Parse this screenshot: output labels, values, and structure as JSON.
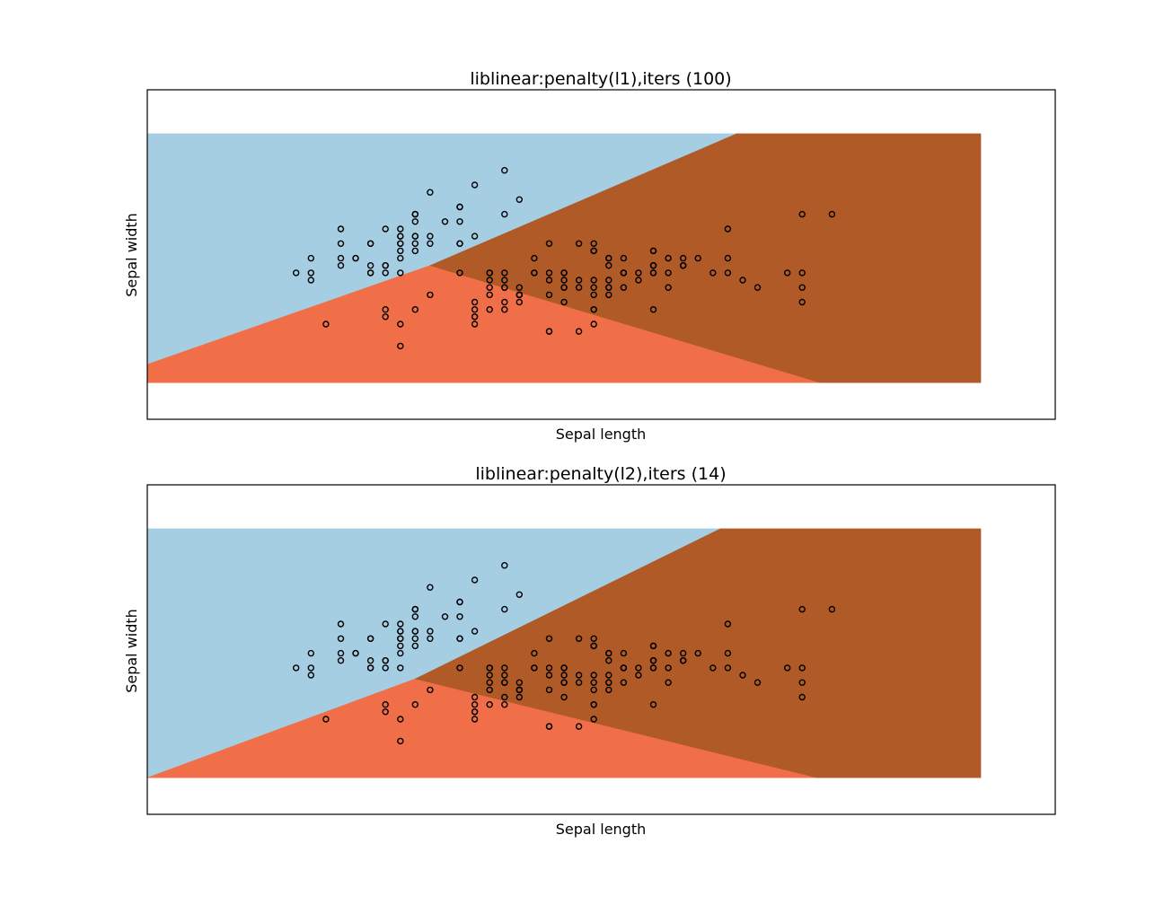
{
  "colors": {
    "class_0": "#a6cee3",
    "class_1": "#f06f48",
    "class_2": "#b05a28",
    "point_edge": "#000000",
    "point_fill": "none"
  },
  "chart_data": [
    {
      "type": "scatter",
      "title": "liblinear:penalty(l1),iters (100)",
      "xlabel": "Sepal length",
      "ylabel": "Sepal width",
      "xticks": [],
      "yticks": [],
      "xlim": [
        3.3,
        9.4
      ],
      "ylim": [
        1.0,
        5.5
      ],
      "mesh_extent": {
        "x": [
          3.3,
          8.9
        ],
        "y": [
          1.5,
          4.9
        ]
      },
      "decision_regions": [
        {
          "class": 0,
          "label": "upper-left region",
          "color_key": "class_0"
        },
        {
          "class": 1,
          "label": "lower-middle region",
          "color_key": "class_1"
        },
        {
          "class": 2,
          "label": "right region",
          "color_key": "class_2"
        }
      ],
      "boundaries": {
        "b01": [
          [
            3.3,
            1.75
          ],
          [
            5.2,
            3.1
          ]
        ],
        "b02": [
          [
            5.2,
            3.1
          ],
          [
            7.26,
            4.9
          ]
        ],
        "b12": [
          [
            5.2,
            3.1
          ],
          [
            7.82,
            1.5
          ]
        ]
      },
      "points": [
        [
          5.1,
          3.5
        ],
        [
          4.9,
          3.0
        ],
        [
          4.7,
          3.2
        ],
        [
          4.6,
          3.1
        ],
        [
          5.0,
          3.6
        ],
        [
          5.4,
          3.9
        ],
        [
          4.6,
          3.4
        ],
        [
          5.0,
          3.4
        ],
        [
          4.4,
          2.9
        ],
        [
          4.9,
          3.1
        ],
        [
          5.4,
          3.7
        ],
        [
          4.8,
          3.4
        ],
        [
          4.8,
          3.0
        ],
        [
          4.3,
          3.0
        ],
        [
          5.8,
          4.0
        ],
        [
          5.7,
          4.4
        ],
        [
          5.4,
          3.9
        ],
        [
          5.1,
          3.5
        ],
        [
          5.7,
          3.8
        ],
        [
          5.1,
          3.8
        ],
        [
          5.4,
          3.4
        ],
        [
          5.1,
          3.7
        ],
        [
          4.6,
          3.6
        ],
        [
          5.1,
          3.3
        ],
        [
          4.8,
          3.4
        ],
        [
          5.0,
          3.0
        ],
        [
          5.0,
          3.4
        ],
        [
          5.2,
          3.5
        ],
        [
          5.2,
          3.4
        ],
        [
          4.7,
          3.2
        ],
        [
          4.8,
          3.1
        ],
        [
          5.4,
          3.4
        ],
        [
          5.2,
          4.1
        ],
        [
          5.5,
          4.2
        ],
        [
          4.9,
          3.1
        ],
        [
          5.0,
          3.2
        ],
        [
          5.5,
          3.5
        ],
        [
          4.9,
          3.6
        ],
        [
          4.4,
          3.0
        ],
        [
          5.1,
          3.4
        ],
        [
          5.0,
          3.5
        ],
        [
          4.5,
          2.3
        ],
        [
          4.4,
          3.2
        ],
        [
          5.0,
          3.5
        ],
        [
          5.1,
          3.8
        ],
        [
          4.8,
          3.0
        ],
        [
          5.1,
          3.8
        ],
        [
          4.6,
          3.2
        ],
        [
          5.3,
          3.7
        ],
        [
          5.0,
          3.3
        ],
        [
          7.0,
          3.2
        ],
        [
          6.4,
          3.2
        ],
        [
          6.9,
          3.1
        ],
        [
          5.5,
          2.3
        ],
        [
          6.5,
          2.8
        ],
        [
          5.7,
          2.8
        ],
        [
          6.3,
          3.3
        ],
        [
          4.9,
          2.4
        ],
        [
          6.6,
          2.9
        ],
        [
          5.2,
          2.7
        ],
        [
          5.0,
          2.0
        ],
        [
          5.9,
          3.0
        ],
        [
          6.0,
          2.2
        ],
        [
          6.1,
          2.9
        ],
        [
          5.6,
          2.9
        ],
        [
          6.7,
          3.1
        ],
        [
          5.6,
          3.0
        ],
        [
          5.8,
          2.7
        ],
        [
          6.2,
          2.2
        ],
        [
          5.6,
          2.5
        ],
        [
          5.9,
          3.2
        ],
        [
          6.1,
          2.8
        ],
        [
          6.3,
          2.5
        ],
        [
          6.1,
          2.8
        ],
        [
          6.4,
          2.9
        ],
        [
          6.6,
          3.0
        ],
        [
          6.8,
          2.8
        ],
        [
          6.7,
          3.0
        ],
        [
          6.0,
          2.9
        ],
        [
          5.7,
          2.6
        ],
        [
          5.5,
          2.4
        ],
        [
          5.5,
          2.4
        ],
        [
          5.8,
          2.7
        ],
        [
          6.0,
          2.7
        ],
        [
          5.4,
          3.0
        ],
        [
          6.0,
          3.4
        ],
        [
          6.7,
          3.1
        ],
        [
          6.3,
          2.3
        ],
        [
          5.6,
          3.0
        ],
        [
          5.5,
          2.5
        ],
        [
          5.5,
          2.6
        ],
        [
          6.1,
          3.0
        ],
        [
          5.8,
          2.6
        ],
        [
          5.0,
          2.3
        ],
        [
          5.6,
          2.7
        ],
        [
          5.7,
          3.0
        ],
        [
          5.7,
          2.9
        ],
        [
          6.2,
          2.9
        ],
        [
          5.1,
          2.5
        ],
        [
          5.7,
          2.8
        ],
        [
          6.3,
          3.3
        ],
        [
          5.8,
          2.7
        ],
        [
          7.1,
          3.0
        ],
        [
          6.3,
          2.9
        ],
        [
          6.5,
          3.0
        ],
        [
          7.6,
          3.0
        ],
        [
          4.9,
          2.5
        ],
        [
          7.3,
          2.9
        ],
        [
          6.7,
          2.5
        ],
        [
          7.2,
          3.6
        ],
        [
          6.5,
          3.2
        ],
        [
          6.4,
          2.7
        ],
        [
          6.8,
          3.0
        ],
        [
          5.7,
          2.5
        ],
        [
          5.8,
          2.8
        ],
        [
          6.4,
          3.2
        ],
        [
          6.5,
          3.0
        ],
        [
          7.7,
          3.8
        ],
        [
          7.7,
          2.6
        ],
        [
          6.0,
          2.2
        ],
        [
          6.9,
          3.2
        ],
        [
          5.6,
          2.8
        ],
        [
          7.7,
          2.8
        ],
        [
          6.3,
          2.7
        ],
        [
          6.7,
          3.3
        ],
        [
          7.2,
          3.2
        ],
        [
          6.2,
          2.8
        ],
        [
          6.1,
          3.0
        ],
        [
          6.4,
          2.8
        ],
        [
          7.2,
          3.0
        ],
        [
          7.4,
          2.8
        ],
        [
          7.9,
          3.8
        ],
        [
          6.4,
          2.8
        ],
        [
          6.3,
          2.8
        ],
        [
          6.1,
          2.6
        ],
        [
          7.7,
          3.0
        ],
        [
          6.3,
          3.4
        ],
        [
          6.4,
          3.1
        ],
        [
          6.0,
          3.0
        ],
        [
          6.9,
          3.1
        ],
        [
          6.7,
          3.1
        ],
        [
          6.9,
          3.1
        ],
        [
          5.8,
          2.7
        ],
        [
          6.8,
          3.2
        ],
        [
          6.7,
          3.3
        ],
        [
          6.7,
          3.0
        ],
        [
          6.3,
          2.5
        ],
        [
          6.5,
          3.0
        ],
        [
          6.2,
          3.4
        ],
        [
          5.9,
          3.0
        ]
      ]
    },
    {
      "type": "scatter",
      "title": "liblinear:penalty(l2),iters (14)",
      "xlabel": "Sepal length",
      "ylabel": "Sepal width",
      "xticks": [],
      "yticks": [],
      "xlim": [
        3.3,
        9.4
      ],
      "ylim": [
        1.0,
        5.5
      ],
      "mesh_extent": {
        "x": [
          3.3,
          8.9
        ],
        "y": [
          1.5,
          4.9
        ]
      },
      "decision_regions": [
        {
          "class": 0,
          "label": "upper-left region",
          "color_key": "class_0"
        },
        {
          "class": 1,
          "label": "lower-middle region",
          "color_key": "class_1"
        },
        {
          "class": 2,
          "label": "right region",
          "color_key": "class_2"
        }
      ],
      "boundaries": {
        "b01": [
          [
            3.3,
            1.5
          ],
          [
            5.1,
            2.85
          ]
        ],
        "b02": [
          [
            5.1,
            2.85
          ],
          [
            7.15,
            4.9
          ]
        ],
        "b12": [
          [
            5.1,
            2.85
          ],
          [
            7.8,
            1.5
          ]
        ]
      },
      "points": [
        [
          5.1,
          3.5
        ],
        [
          4.9,
          3.0
        ],
        [
          4.7,
          3.2
        ],
        [
          4.6,
          3.1
        ],
        [
          5.0,
          3.6
        ],
        [
          5.4,
          3.9
        ],
        [
          4.6,
          3.4
        ],
        [
          5.0,
          3.4
        ],
        [
          4.4,
          2.9
        ],
        [
          4.9,
          3.1
        ],
        [
          5.4,
          3.7
        ],
        [
          4.8,
          3.4
        ],
        [
          4.8,
          3.0
        ],
        [
          4.3,
          3.0
        ],
        [
          5.8,
          4.0
        ],
        [
          5.7,
          4.4
        ],
        [
          5.4,
          3.9
        ],
        [
          5.1,
          3.5
        ],
        [
          5.7,
          3.8
        ],
        [
          5.1,
          3.8
        ],
        [
          5.4,
          3.4
        ],
        [
          5.1,
          3.7
        ],
        [
          4.6,
          3.6
        ],
        [
          5.1,
          3.3
        ],
        [
          4.8,
          3.4
        ],
        [
          5.0,
          3.0
        ],
        [
          5.0,
          3.4
        ],
        [
          5.2,
          3.5
        ],
        [
          5.2,
          3.4
        ],
        [
          4.7,
          3.2
        ],
        [
          4.8,
          3.1
        ],
        [
          5.4,
          3.4
        ],
        [
          5.2,
          4.1
        ],
        [
          5.5,
          4.2
        ],
        [
          4.9,
          3.1
        ],
        [
          5.0,
          3.2
        ],
        [
          5.5,
          3.5
        ],
        [
          4.9,
          3.6
        ],
        [
          4.4,
          3.0
        ],
        [
          5.1,
          3.4
        ],
        [
          5.0,
          3.5
        ],
        [
          4.5,
          2.3
        ],
        [
          4.4,
          3.2
        ],
        [
          5.0,
          3.5
        ],
        [
          5.1,
          3.8
        ],
        [
          4.8,
          3.0
        ],
        [
          5.1,
          3.8
        ],
        [
          4.6,
          3.2
        ],
        [
          5.3,
          3.7
        ],
        [
          5.0,
          3.3
        ],
        [
          7.0,
          3.2
        ],
        [
          6.4,
          3.2
        ],
        [
          6.9,
          3.1
        ],
        [
          5.5,
          2.3
        ],
        [
          6.5,
          2.8
        ],
        [
          5.7,
          2.8
        ],
        [
          6.3,
          3.3
        ],
        [
          4.9,
          2.4
        ],
        [
          6.6,
          2.9
        ],
        [
          5.2,
          2.7
        ],
        [
          5.0,
          2.0
        ],
        [
          5.9,
          3.0
        ],
        [
          6.0,
          2.2
        ],
        [
          6.1,
          2.9
        ],
        [
          5.6,
          2.9
        ],
        [
          6.7,
          3.1
        ],
        [
          5.6,
          3.0
        ],
        [
          5.8,
          2.7
        ],
        [
          6.2,
          2.2
        ],
        [
          5.6,
          2.5
        ],
        [
          5.9,
          3.2
        ],
        [
          6.1,
          2.8
        ],
        [
          6.3,
          2.5
        ],
        [
          6.1,
          2.8
        ],
        [
          6.4,
          2.9
        ],
        [
          6.6,
          3.0
        ],
        [
          6.8,
          2.8
        ],
        [
          6.7,
          3.0
        ],
        [
          6.0,
          2.9
        ],
        [
          5.7,
          2.6
        ],
        [
          5.5,
          2.4
        ],
        [
          5.5,
          2.4
        ],
        [
          5.8,
          2.7
        ],
        [
          6.0,
          2.7
        ],
        [
          5.4,
          3.0
        ],
        [
          6.0,
          3.4
        ],
        [
          6.7,
          3.1
        ],
        [
          6.3,
          2.3
        ],
        [
          5.6,
          3.0
        ],
        [
          5.5,
          2.5
        ],
        [
          5.5,
          2.6
        ],
        [
          6.1,
          3.0
        ],
        [
          5.8,
          2.6
        ],
        [
          5.0,
          2.3
        ],
        [
          5.6,
          2.7
        ],
        [
          5.7,
          3.0
        ],
        [
          5.7,
          2.9
        ],
        [
          6.2,
          2.9
        ],
        [
          5.1,
          2.5
        ],
        [
          5.7,
          2.8
        ],
        [
          6.3,
          3.3
        ],
        [
          5.8,
          2.7
        ],
        [
          7.1,
          3.0
        ],
        [
          6.3,
          2.9
        ],
        [
          6.5,
          3.0
        ],
        [
          7.6,
          3.0
        ],
        [
          4.9,
          2.5
        ],
        [
          7.3,
          2.9
        ],
        [
          6.7,
          2.5
        ],
        [
          7.2,
          3.6
        ],
        [
          6.5,
          3.2
        ],
        [
          6.4,
          2.7
        ],
        [
          6.8,
          3.0
        ],
        [
          5.7,
          2.5
        ],
        [
          5.8,
          2.8
        ],
        [
          6.4,
          3.2
        ],
        [
          6.5,
          3.0
        ],
        [
          7.7,
          3.8
        ],
        [
          7.7,
          2.6
        ],
        [
          6.0,
          2.2
        ],
        [
          6.9,
          3.2
        ],
        [
          5.6,
          2.8
        ],
        [
          7.7,
          2.8
        ],
        [
          6.3,
          2.7
        ],
        [
          6.7,
          3.3
        ],
        [
          7.2,
          3.2
        ],
        [
          6.2,
          2.8
        ],
        [
          6.1,
          3.0
        ],
        [
          6.4,
          2.8
        ],
        [
          7.2,
          3.0
        ],
        [
          7.4,
          2.8
        ],
        [
          7.9,
          3.8
        ],
        [
          6.4,
          2.8
        ],
        [
          6.3,
          2.8
        ],
        [
          6.1,
          2.6
        ],
        [
          7.7,
          3.0
        ],
        [
          6.3,
          3.4
        ],
        [
          6.4,
          3.1
        ],
        [
          6.0,
          3.0
        ],
        [
          6.9,
          3.1
        ],
        [
          6.7,
          3.1
        ],
        [
          6.9,
          3.1
        ],
        [
          5.8,
          2.7
        ],
        [
          6.8,
          3.2
        ],
        [
          6.7,
          3.3
        ],
        [
          6.7,
          3.0
        ],
        [
          6.3,
          2.5
        ],
        [
          6.5,
          3.0
        ],
        [
          6.2,
          3.4
        ],
        [
          5.9,
          3.0
        ]
      ]
    }
  ]
}
